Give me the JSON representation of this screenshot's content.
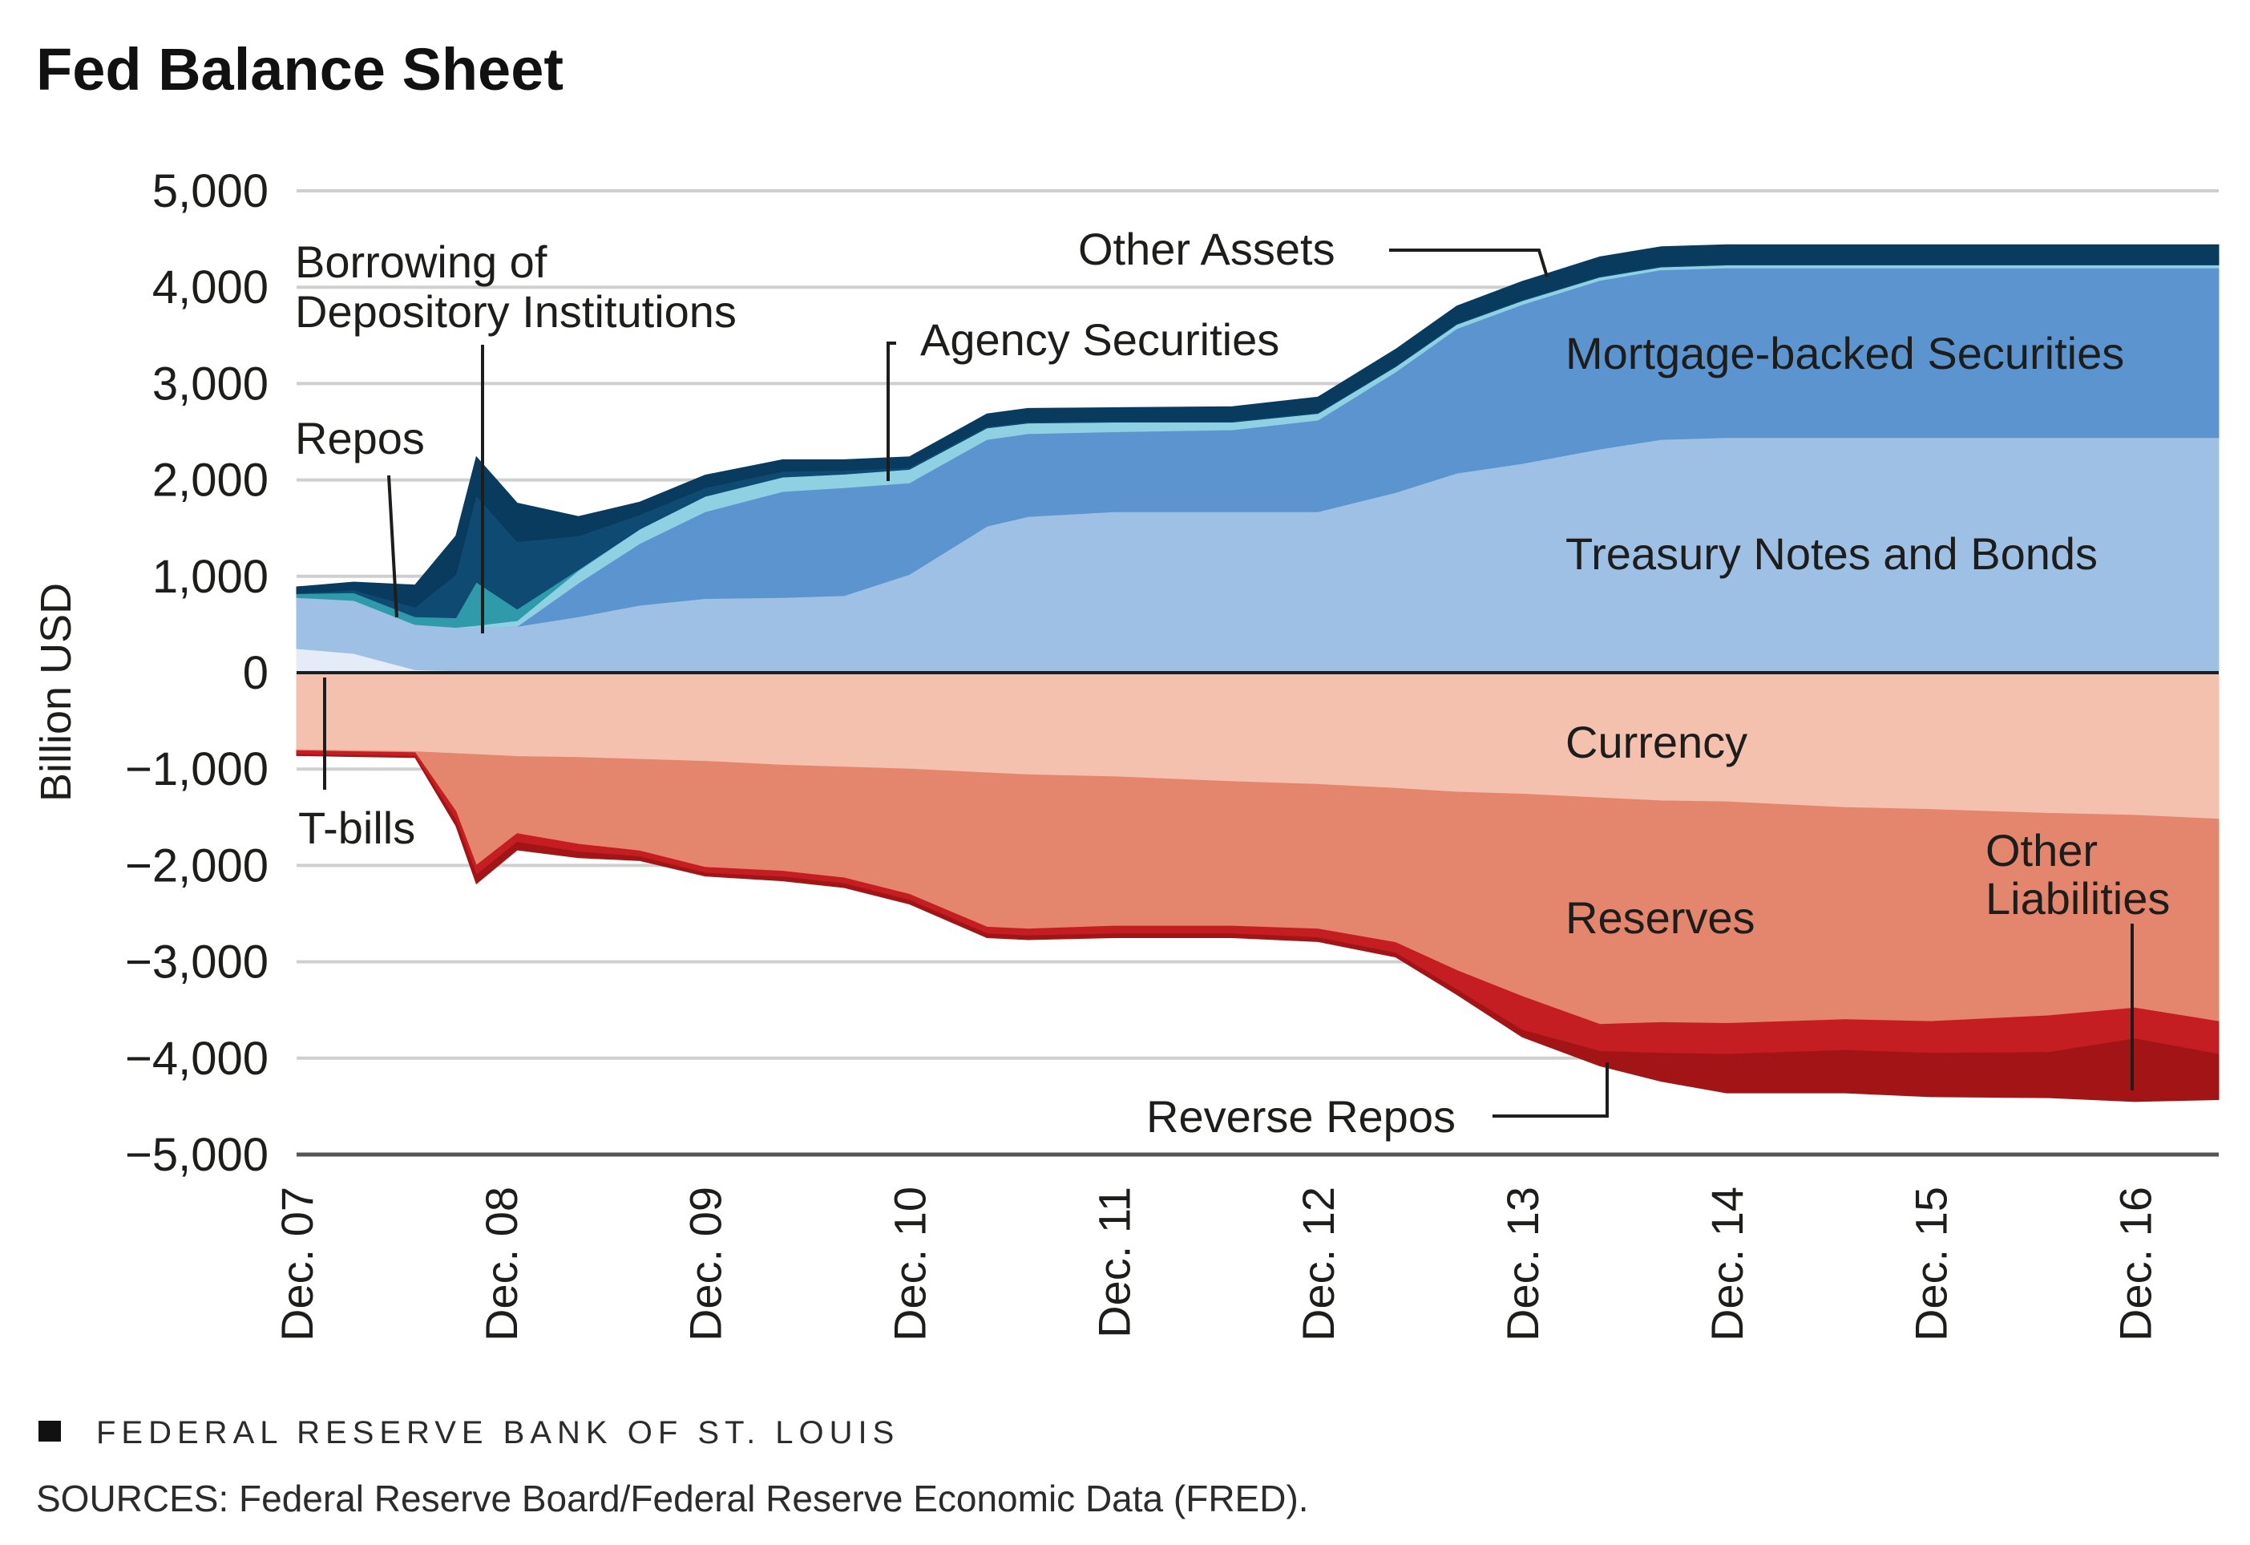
{
  "title": "Fed Balance Sheet",
  "footer": {
    "publisher": "FEDERAL RESERVE BANK OF ST. LOUIS",
    "sources": "SOURCES: Federal Reserve Board/Federal Reserve Economic Data (FRED)."
  },
  "chart_data": {
    "type": "area",
    "title": "Fed Balance Sheet",
    "xlabel": "",
    "ylabel": "Billion USD",
    "ylim": [
      -5000,
      5000
    ],
    "xlim": [
      2007.92,
      2017.33
    ],
    "grid": true,
    "yticks": [
      5000,
      4000,
      3000,
      2000,
      1000,
      0,
      -1000,
      -2000,
      -3000,
      -4000,
      -5000
    ],
    "ytick_labels": [
      "5,000",
      "4,000",
      "3,000",
      "2,000",
      "1,000",
      "0",
      "−1,000",
      "−2,000",
      "−3,000",
      "−4,000",
      "−5,000"
    ],
    "xticks": [
      2007.92,
      2008.92,
      2009.92,
      2010.92,
      2011.92,
      2012.92,
      2013.92,
      2014.92,
      2015.92,
      2016.92
    ],
    "xtick_labels": [
      "Dec. 07",
      "Dec. 08",
      "Dec. 09",
      "Dec. 10",
      "Dec. 11",
      "Dec. 12",
      "Dec. 13",
      "Dec. 14",
      "Dec. 15",
      "Dec. 16"
    ],
    "x": [
      2007.92,
      2008.2,
      2008.5,
      2008.7,
      2008.8,
      2009.0,
      2009.3,
      2009.6,
      2009.92,
      2010.3,
      2010.6,
      2010.92,
      2011.3,
      2011.5,
      2011.92,
      2012.5,
      2012.92,
      2013.3,
      2013.6,
      2013.92,
      2014.3,
      2014.6,
      2014.92,
      2015.5,
      2015.92,
      2016.5,
      2016.92,
      2017.33
    ],
    "assets": [
      {
        "name": "T-bills",
        "color": "#e3ecf7",
        "values": [
          250,
          200,
          30,
          20,
          20,
          20,
          20,
          20,
          20,
          20,
          20,
          20,
          20,
          20,
          20,
          20,
          20,
          20,
          20,
          20,
          20,
          20,
          20,
          20,
          20,
          20,
          20,
          20
        ]
      },
      {
        "name": "Treasury Notes and Bonds",
        "color": "#9ec0e5",
        "values": [
          530,
          550,
          470,
          450,
          450,
          460,
          560,
          680,
          750,
          760,
          780,
          1000,
          1500,
          1600,
          1650,
          1650,
          1650,
          1850,
          2050,
          2150,
          2300,
          2400,
          2420,
          2420,
          2420,
          2420,
          2420,
          2420
        ]
      },
      {
        "name": "Mortgage-backed Securities",
        "color": "#5b94cf",
        "values": [
          0,
          0,
          0,
          0,
          0,
          0,
          350,
          640,
          900,
          1100,
          1120,
          950,
          900,
          860,
          830,
          850,
          950,
          1250,
          1500,
          1650,
          1750,
          1760,
          1760,
          1760,
          1760,
          1760,
          1760,
          1760
        ]
      },
      {
        "name": "Agency Securities",
        "color": "#8fd0e3",
        "values": [
          0,
          0,
          0,
          0,
          20,
          60,
          130,
          150,
          160,
          150,
          140,
          140,
          120,
          110,
          100,
          80,
          70,
          55,
          45,
          40,
          35,
          30,
          30,
          30,
          30,
          30,
          30,
          30
        ]
      },
      {
        "name": "Repos",
        "color": "#2e9aaa",
        "values": [
          40,
          80,
          80,
          100,
          450,
          120,
          10,
          0,
          0,
          0,
          0,
          0,
          0,
          0,
          0,
          0,
          0,
          0,
          0,
          0,
          0,
          0,
          0,
          0,
          0,
          0,
          0,
          0
        ]
      },
      {
        "name": "Borrowing of Depository Institutions",
        "color": "#0f4a73",
        "values": [
          0,
          30,
          100,
          450,
          900,
          700,
          350,
          150,
          90,
          60,
          40,
          20,
          15,
          12,
          10,
          10,
          10,
          10,
          10,
          10,
          10,
          10,
          10,
          10,
          10,
          10,
          10,
          10
        ]
      },
      {
        "name": "Other Assets",
        "color": "#093b5f",
        "values": [
          70,
          80,
          230,
          400,
          400,
          400,
          200,
          130,
          130,
          120,
          110,
          110,
          130,
          140,
          140,
          150,
          160,
          170,
          180,
          190,
          200,
          200,
          200,
          200,
          200,
          200,
          200,
          200
        ]
      }
    ],
    "liabilities": [
      {
        "name": "Currency",
        "color": "#f3c1ae",
        "values": [
          -800,
          -810,
          -820,
          -840,
          -850,
          -870,
          -880,
          -900,
          -920,
          -960,
          -980,
          -1000,
          -1040,
          -1060,
          -1080,
          -1130,
          -1160,
          -1200,
          -1240,
          -1260,
          -1300,
          -1330,
          -1340,
          -1400,
          -1420,
          -1460,
          -1480,
          -1520
        ]
      },
      {
        "name": "Reserves",
        "color": "#e4856d",
        "values": [
          -10,
          -10,
          -10,
          -600,
          -1150,
          -800,
          -900,
          -950,
          -1100,
          -1100,
          -1150,
          -1300,
          -1600,
          -1600,
          -1550,
          -1500,
          -1500,
          -1600,
          -1850,
          -2100,
          -2350,
          -2300,
          -2300,
          -2200,
          -2200,
          -2100,
          -2000,
          -2100
        ]
      },
      {
        "name": "Reverse Repos",
        "color": "#c41e22",
        "values": [
          -40,
          -40,
          -40,
          -90,
          -100,
          -90,
          -80,
          -60,
          -60,
          -60,
          -60,
          -60,
          -70,
          -70,
          -80,
          -80,
          -90,
          -110,
          -200,
          -350,
          -280,
          -320,
          -320,
          -320,
          -330,
          -380,
          -320,
          -340
        ]
      },
      {
        "name": "Other Liabilities",
        "color": "#a31417",
        "values": [
          -10,
          -10,
          -10,
          -60,
          -90,
          -80,
          -60,
          -40,
          -30,
          -40,
          -40,
          -40,
          -40,
          -40,
          -40,
          -40,
          -40,
          -40,
          -50,
          -70,
          -150,
          -290,
          -400,
          -440,
          -450,
          -470,
          -650,
          -470
        ]
      }
    ],
    "annotations": [
      {
        "text": "Other Assets"
      },
      {
        "text": "Borrowing of"
      },
      {
        "text": "Depository Institutions"
      },
      {
        "text": "Agency Securities"
      },
      {
        "text": "Repos"
      },
      {
        "text": "Mortgage-backed Securities"
      },
      {
        "text": "Treasury Notes and Bonds"
      },
      {
        "text": "Currency"
      },
      {
        "text": "T-bills"
      },
      {
        "text": "Other"
      },
      {
        "text": "Liabilities"
      },
      {
        "text": "Reserves"
      },
      {
        "text": "Reverse Repos"
      }
    ]
  }
}
